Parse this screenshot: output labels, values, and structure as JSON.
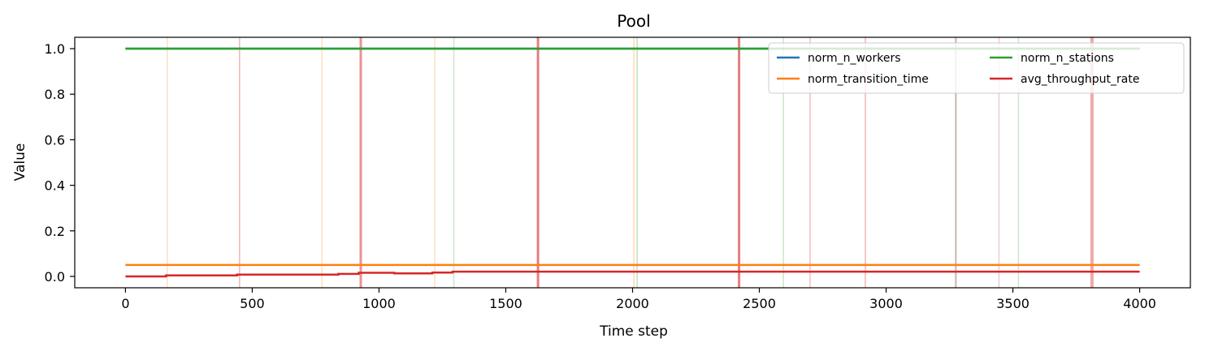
{
  "chart_data": {
    "type": "line",
    "title": "Pool",
    "xlabel": "Time step",
    "ylabel": "Value",
    "xlim": [
      -200,
      4200
    ],
    "ylim": [
      -0.05,
      1.05
    ],
    "xticks": [
      0,
      500,
      1000,
      1500,
      2000,
      2500,
      3000,
      3500,
      4000
    ],
    "yticks": [
      0.0,
      0.2,
      0.4,
      0.6,
      0.8,
      1.0
    ],
    "xtick_labels": [
      "0",
      "500",
      "1000",
      "1500",
      "2000",
      "2500",
      "3000",
      "3500",
      "4000"
    ],
    "ytick_labels": [
      "0.0",
      "0.2",
      "0.4",
      "0.6",
      "0.8",
      "1.0"
    ],
    "legend_position": "top-right",
    "series": [
      {
        "name": "norm_n_workers",
        "color": "#1f77b4",
        "x": [
          0,
          4000
        ],
        "y": [
          1.0,
          1.0
        ],
        "step": true
      },
      {
        "name": "norm_transition_time",
        "color": "#ff7f0e",
        "x": [
          0,
          4000
        ],
        "y": [
          0.05,
          0.05
        ],
        "step": true
      },
      {
        "name": "norm_n_stations",
        "color": "#2ca02c",
        "x": [
          0,
          4000
        ],
        "y": [
          1.0,
          1.0
        ],
        "step": true
      },
      {
        "name": "avg_throughput_rate",
        "color": "#d62728",
        "x": [
          0,
          160,
          440,
          840,
          920,
          1060,
          1210,
          1290,
          4000
        ],
        "y": [
          0.0,
          0.004,
          0.008,
          0.011,
          0.016,
          0.013,
          0.017,
          0.021,
          0.021
        ],
        "step": true
      }
    ],
    "event_lines": [
      {
        "x": 165,
        "color": "#ff7f0e",
        "opacity": 0.25,
        "width": 1.5
      },
      {
        "x": 450,
        "color": "#d62728",
        "opacity": 0.35,
        "width": 1.5
      },
      {
        "x": 775,
        "color": "#ff7f0e",
        "opacity": 0.25,
        "width": 1.5
      },
      {
        "x": 928,
        "color": "#d62728",
        "opacity": 0.5,
        "width": 3
      },
      {
        "x": 1220,
        "color": "#ff7f0e",
        "opacity": 0.25,
        "width": 1.5
      },
      {
        "x": 1295,
        "color": "#2ca02c",
        "opacity": 0.25,
        "width": 1.5
      },
      {
        "x": 1627,
        "color": "#d62728",
        "opacity": 0.6,
        "width": 3
      },
      {
        "x": 2005,
        "color": "#ff7f0e",
        "opacity": 0.3,
        "width": 1.5
      },
      {
        "x": 2018,
        "color": "#2ca02c",
        "opacity": 0.3,
        "width": 1.5
      },
      {
        "x": 2420,
        "color": "#d62728",
        "opacity": 0.6,
        "width": 3
      },
      {
        "x": 2595,
        "color": "#2ca02c",
        "opacity": 0.25,
        "width": 1.5
      },
      {
        "x": 2700,
        "color": "#d62728",
        "opacity": 0.3,
        "width": 1.5
      },
      {
        "x": 2918,
        "color": "#d62728",
        "opacity": 0.35,
        "width": 1.5
      },
      {
        "x": 3275,
        "color": "#8c564b",
        "opacity": 0.45,
        "width": 2
      },
      {
        "x": 3445,
        "color": "#d62728",
        "opacity": 0.25,
        "width": 1.5
      },
      {
        "x": 3522,
        "color": "#2ca02c",
        "opacity": 0.25,
        "width": 1.5
      },
      {
        "x": 3812,
        "color": "#d62728",
        "opacity": 0.4,
        "width": 4
      }
    ]
  }
}
